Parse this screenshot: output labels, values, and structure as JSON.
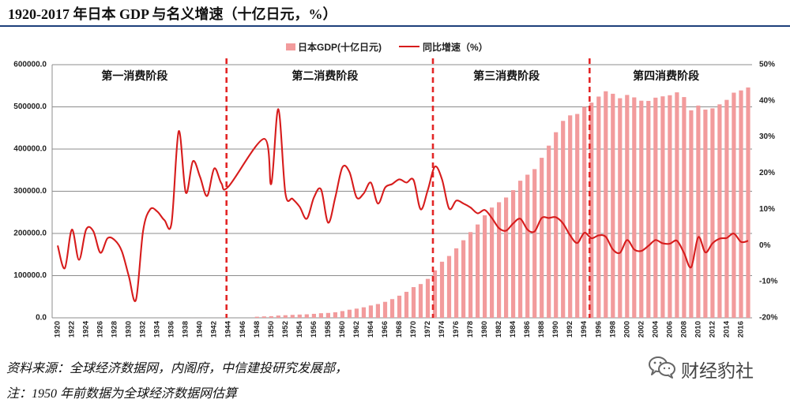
{
  "chart_data": {
    "type": "bar",
    "title": "1920-2017 年日本 GDP 与名义增速（十亿日元，%）",
    "legend": "top-center",
    "grid": true,
    "x": [
      1920,
      1921,
      1922,
      1923,
      1924,
      1925,
      1926,
      1927,
      1928,
      1929,
      1930,
      1931,
      1932,
      1933,
      1934,
      1935,
      1936,
      1937,
      1938,
      1939,
      1940,
      1941,
      1942,
      1943,
      1944,
      1945,
      1946,
      1947,
      1948,
      1949,
      1950,
      1951,
      1952,
      1953,
      1954,
      1955,
      1956,
      1957,
      1958,
      1959,
      1960,
      1961,
      1962,
      1963,
      1964,
      1965,
      1966,
      1967,
      1968,
      1969,
      1970,
      1971,
      1972,
      1973,
      1974,
      1975,
      1976,
      1977,
      1978,
      1979,
      1980,
      1981,
      1982,
      1983,
      1984,
      1985,
      1986,
      1987,
      1988,
      1989,
      1990,
      1991,
      1992,
      1993,
      1994,
      1995,
      1996,
      1997,
      1998,
      1999,
      2000,
      2001,
      2002,
      2003,
      2004,
      2005,
      2006,
      2007,
      2008,
      2009,
      2010,
      2011,
      2012,
      2013,
      2014,
      2015,
      2016,
      2017
    ],
    "series": [
      {
        "name": "日本GDP(十亿日元)",
        "type": "bar",
        "axis": "left",
        "color": "#f29b9c",
        "values": [
          16.0,
          15.0,
          15.7,
          15.0,
          15.7,
          16.3,
          16.0,
          16.3,
          16.5,
          16.3,
          14.9,
          12.7,
          13.2,
          14.5,
          15.9,
          17.0,
          18.1,
          23.8,
          27.3,
          33.6,
          40.0,
          45.8,
          55.4,
          64.8,
          75.2,
          null,
          null,
          null,
          2606,
          3375,
          3950,
          5440,
          6220,
          7020,
          7770,
          8350,
          9460,
          10930,
          11610,
          13160,
          16000,
          19250,
          21810,
          24950,
          29290,
          32690,
          37920,
          44370,
          52490,
          61620,
          72780,
          80060,
          92310,
          112430,
          133010,
          146580,
          164750,
          183860,
          203170,
          221250,
          242930,
          261390,
          273940,
          285170,
          302560,
          324950,
          339250,
          352480,
          379270,
          408090,
          439920,
          466760,
          479830,
          483190,
          500100,
          510100,
          524380,
          536970,
          531060,
          520440,
          528250,
          522440,
          514600,
          514090,
          521800,
          524930,
          527550,
          534410,
          523190,
          491800,
          503110,
          493550,
          496510,
          505940,
          516560,
          533610,
          538950,
          545960
        ]
      },
      {
        "name": "同比增速（%）",
        "type": "line",
        "axis": "right",
        "color": "#d71c1c",
        "values": [
          0.0,
          -6.3,
          4.4,
          -4.0,
          4.4,
          4.0,
          -2.0,
          2.0,
          1.5,
          -1.5,
          -8.5,
          -15.0,
          4.0,
          10.0,
          9.4,
          7.0,
          6.3,
          31.6,
          14.6,
          23.3,
          19.0,
          13.7,
          21.3,
          17.2,
          16.3,
          null,
          null,
          null,
          null,
          29.5,
          17.0,
          37.7,
          14.4,
          12.9,
          10.7,
          7.4,
          13.3,
          15.5,
          6.3,
          13.3,
          21.6,
          20.3,
          13.3,
          14.4,
          17.4,
          11.6,
          16.0,
          17.0,
          18.3,
          17.4,
          18.1,
          10.0,
          15.3,
          21.8,
          18.3,
          10.2,
          12.4,
          11.6,
          10.5,
          8.9,
          9.8,
          7.6,
          4.8,
          4.1,
          6.1,
          7.4,
          4.4,
          3.9,
          7.6,
          7.6,
          7.8,
          6.1,
          2.8,
          0.7,
          3.5,
          2.0,
          2.8,
          2.4,
          -1.1,
          -2.0,
          1.5,
          -1.1,
          -1.5,
          -0.1,
          1.5,
          0.6,
          0.5,
          1.3,
          -2.1,
          -6.0,
          2.3,
          -1.9,
          0.6,
          1.9,
          2.1,
          3.3,
          1.0,
          1.3
        ]
      }
    ],
    "y_left": {
      "range": [
        0,
        600000
      ],
      "ticks": [
        0,
        100000,
        200000,
        300000,
        400000,
        500000,
        600000
      ],
      "tick_labels": [
        "0.0",
        "100000.0",
        "200000.0",
        "300000.0",
        "400000.0",
        "500000.0",
        "600000.0"
      ]
    },
    "y_right": {
      "range": [
        -20,
        50
      ],
      "ticks": [
        -20,
        -10,
        0,
        10,
        20,
        30,
        40,
        50
      ],
      "tick_labels": [
        "-20%",
        "-10%",
        "0%",
        "10%",
        "20%",
        "30%",
        "40%",
        "50%"
      ]
    },
    "x_tick_labels": [
      "1920",
      "1922",
      "1924",
      "1926",
      "1928",
      "1930",
      "1932",
      "1934",
      "1936",
      "1938",
      "1940",
      "1942",
      "1944",
      "1946",
      "1948",
      "1950",
      "1952",
      "1954",
      "1956",
      "1958",
      "1960",
      "1962",
      "1964",
      "1966",
      "1968",
      "1970",
      "1972",
      "1974",
      "1976",
      "1978",
      "1980",
      "1982",
      "1984",
      "1986",
      "1988",
      "1990",
      "1992",
      "1994",
      "1996",
      "1998",
      "2000",
      "2002",
      "2004",
      "2006",
      "2008",
      "2010",
      "2012",
      "2014",
      "2016"
    ],
    "phases": [
      {
        "label": "第一消费阶段",
        "start": 1920
      },
      {
        "label": "第二消费阶段",
        "start": 1944
      },
      {
        "label": "第三消费阶段",
        "start": 1973
      },
      {
        "label": "第四消费阶段",
        "start": 1995
      }
    ],
    "divider_color": "#e32626",
    "grid_color": "#8c8c8c"
  },
  "footer": {
    "source": "资料来源：全球经济数据网，内阁府，中信建投研究发展部，",
    "note": "注：1950 年前数据为全球经济数据网估算"
  },
  "watermark": {
    "icon": "wechat-icon",
    "text": "财经豹社"
  },
  "colors": {
    "title_rule": "#1c3f7a"
  }
}
